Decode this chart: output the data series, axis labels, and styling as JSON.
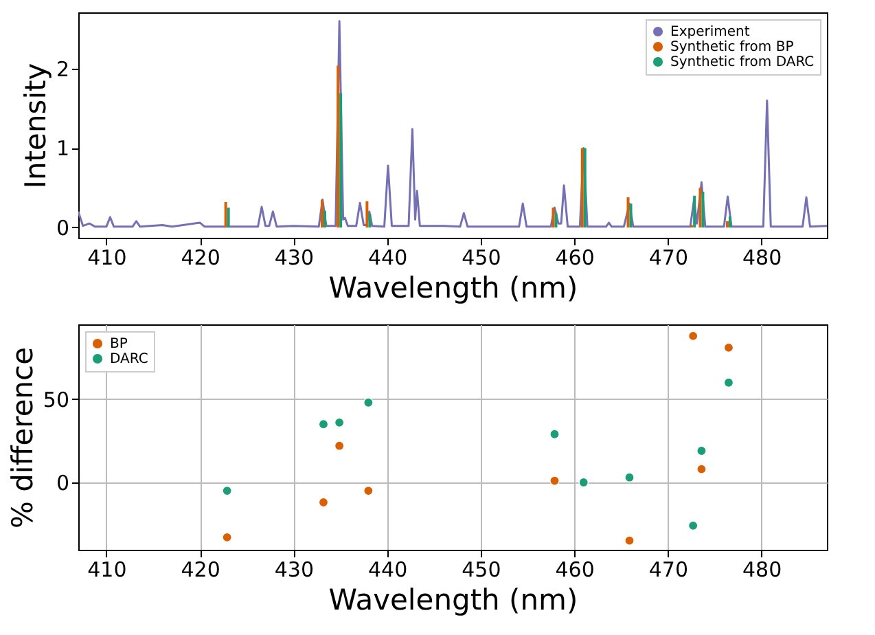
{
  "chart_data": [
    {
      "type": "line",
      "ylabel": "Intensity",
      "xlabel": "Wavelength (nm)",
      "xlim": [
        407,
        487
      ],
      "xticks": [
        410,
        420,
        430,
        440,
        450,
        460,
        470,
        480
      ],
      "ylim": [
        -0.13,
        2.71
      ],
      "yticks": [
        0,
        1,
        2
      ],
      "grid": false,
      "legend": "top right",
      "series": [
        {
          "name": "Experiment",
          "type": "line",
          "color": "#7570b3",
          "x": [
            407,
            407.5,
            408.2,
            408.8,
            410,
            410.4,
            410.8,
            412.8,
            413.2,
            413.6,
            416,
            417,
            420,
            420.5,
            426.2,
            426.6,
            427,
            427.4,
            427.8,
            428.2,
            430,
            432.7,
            433.1,
            433.5,
            434.5,
            434.9,
            435.3,
            435.5,
            435.8,
            436.7,
            437.1,
            437.5,
            437.8,
            438.1,
            438.4,
            439.7,
            440.1,
            440.5,
            442.3,
            442.7,
            443.0,
            443.2,
            443.5,
            446,
            447.8,
            448.2,
            448.6,
            454.1,
            454.5,
            454.9,
            457.5,
            457.9,
            458.3,
            458.6,
            458.9,
            459.3,
            460.6,
            461.0,
            461.4,
            463.4,
            463.7,
            464.0,
            465.3,
            465.9,
            466.3,
            472.4,
            472.8,
            473.1,
            473.6,
            474.0,
            476.0,
            476.4,
            476.8,
            480.2,
            480.6,
            481.0,
            484.4,
            484.8,
            485.2,
            487
          ],
          "values": [
            0.2,
            0.02,
            0.05,
            0.01,
            0.01,
            0.13,
            0.01,
            0.01,
            0.08,
            0.01,
            0.03,
            0.01,
            0.06,
            0.01,
            0.01,
            0.26,
            0.02,
            0.02,
            0.2,
            0.01,
            0.02,
            0.01,
            0.35,
            0.02,
            0.02,
            2.6,
            0.1,
            0.12,
            0.02,
            0.02,
            0.31,
            0.03,
            0.03,
            0.2,
            0.02,
            0.01,
            0.78,
            0.02,
            0.02,
            1.24,
            0.1,
            0.46,
            0.02,
            0.02,
            0.01,
            0.18,
            0.01,
            0.01,
            0.3,
            0.01,
            0.01,
            0.25,
            0.05,
            0.05,
            0.53,
            0.01,
            0.01,
            1.0,
            0.01,
            0.01,
            0.06,
            0.01,
            0.01,
            0.3,
            0.01,
            0.01,
            0.35,
            0.05,
            0.57,
            0.01,
            0.01,
            0.39,
            0.01,
            0.01,
            1.6,
            0.01,
            0.01,
            0.38,
            0.01,
            0.02
          ]
        },
        {
          "name": "Synthetic from BP",
          "type": "bar",
          "color": "#d95f02",
          "x": [
            422.9,
            433.2,
            434.9,
            438.0,
            457.9,
            461.0,
            465.9,
            472.7,
            473.6,
            476.5
          ],
          "values": [
            0.32,
            0.35,
            2.04,
            0.33,
            0.25,
            1.0,
            0.38,
            0.03,
            0.5,
            0.08
          ]
        },
        {
          "name": "Synthetic from DARC",
          "type": "bar",
          "color": "#1b9e77",
          "x": [
            422.9,
            433.2,
            434.9,
            438.0,
            457.9,
            461.0,
            465.9,
            472.7,
            473.6,
            476.5
          ],
          "values": [
            0.25,
            0.21,
            1.69,
            0.17,
            0.18,
            1.0,
            0.3,
            0.4,
            0.45,
            0.14
          ]
        }
      ]
    },
    {
      "type": "scatter",
      "ylabel": "% difference",
      "xlabel": "Wavelength (nm)",
      "xlim": [
        407,
        487
      ],
      "xticks": [
        410,
        420,
        430,
        440,
        450,
        460,
        470,
        480
      ],
      "ylim": [
        -40.5,
        95
      ],
      "yticks": [
        0,
        50
      ],
      "grid": true,
      "legend": "top left",
      "marker": "circle",
      "x": [
        422.9,
        433.2,
        434.9,
        438.0,
        457.9,
        461.0,
        465.9,
        472.7,
        473.6,
        476.5
      ],
      "series": [
        {
          "name": "BP",
          "color": "#d95f02",
          "values": [
            -33,
            -12,
            22,
            -5,
            1,
            null,
            -35,
            88,
            8,
            81
          ]
        },
        {
          "name": "DARC",
          "color": "#1b9e77",
          "values": [
            -5,
            35,
            36,
            48,
            29,
            0,
            3,
            -26,
            19,
            60
          ]
        }
      ]
    }
  ]
}
